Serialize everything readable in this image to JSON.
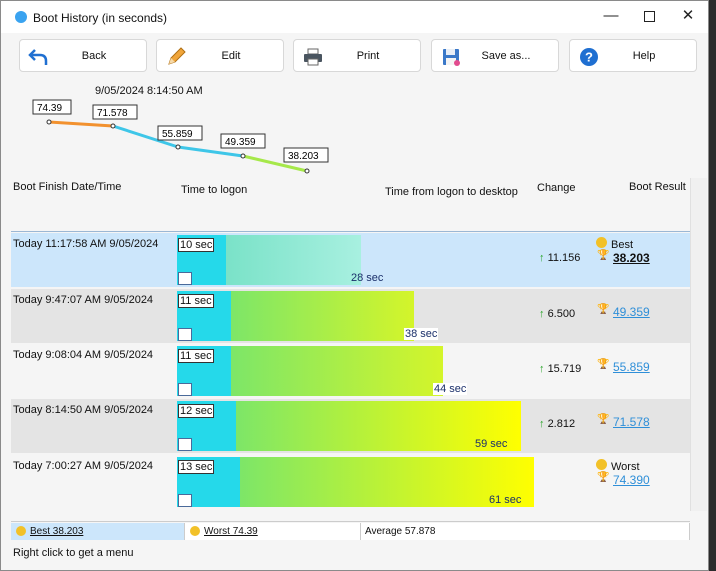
{
  "window": {
    "title": "Boot History (in seconds)"
  },
  "controls": {
    "minimize": "—",
    "close": "✕"
  },
  "toolbar": {
    "back": "Back",
    "edit": "Edit",
    "print": "Print",
    "save": "Save as...",
    "help": "Help"
  },
  "graph": {
    "timestamp": "9/05/2024  8:14:50 AM",
    "points": [
      {
        "label": "74.39",
        "color": "#f2912e"
      },
      {
        "label": "71.578",
        "color": "#3ec6e8"
      },
      {
        "label": "55.859",
        "color": "#3ec6e8"
      },
      {
        "label": "49.359",
        "color": "#a6e84a"
      },
      {
        "label": "38.203",
        "color": "#a6e84a"
      }
    ]
  },
  "columns": {
    "date": "Boot Finish Date/Time",
    "logon": "Time to logon",
    "desktop": "Time from logon to desktop",
    "change": "Change",
    "result": "Boot Result"
  },
  "rows": [
    {
      "date": "Today  11:17:58 AM 9/05/2024",
      "logon": "10 sec",
      "total": "28 sec",
      "change": "11.156",
      "word": "Best",
      "value": "38.203"
    },
    {
      "date": "Today  9:47:07 AM 9/05/2024",
      "logon": "11 sec",
      "total": "38 sec",
      "change": "6.500",
      "word": "",
      "value": "49.359"
    },
    {
      "date": "Today  9:08:04 AM 9/05/2024",
      "logon": "11 sec",
      "total": "44 sec",
      "change": "15.719",
      "word": "",
      "value": "55.859"
    },
    {
      "date": "Today  8:14:50 AM 9/05/2024",
      "logon": "12 sec",
      "total": "59 sec",
      "change": "2.812",
      "word": "",
      "value": "71.578"
    },
    {
      "date": "Today  7:00:27 AM 9/05/2024",
      "logon": "13 sec",
      "total": "61 sec",
      "change": "",
      "word": "Worst",
      "value": "74.390"
    }
  ],
  "status": {
    "best": "Best 38.203",
    "worst": "Worst 74.39",
    "average": "Average 57.878"
  },
  "hint": "Right click to get a menu"
}
